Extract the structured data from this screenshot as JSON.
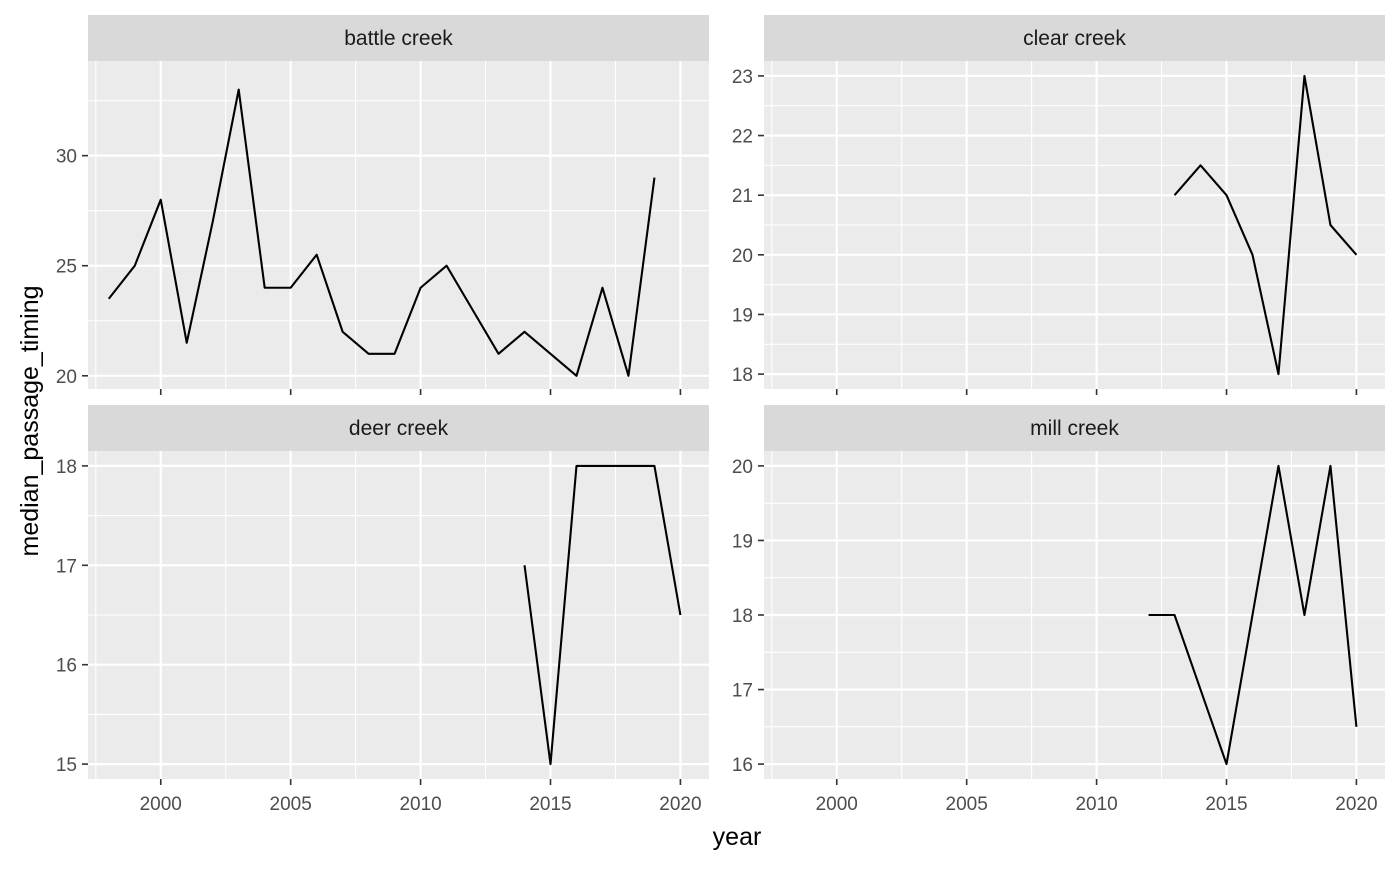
{
  "chart_data": {
    "type": "line",
    "layout": "facet_wrap",
    "xlabel": "year",
    "ylabel": "median_passage_timing",
    "x_ticks": [
      2000,
      2005,
      2010,
      2015,
      2020
    ],
    "xlim": [
      1997.2,
      2021.1
    ],
    "grid": true,
    "line_color": "#000000",
    "panel_bg": "#ebebeb",
    "strip_bg": "#d9d9d9",
    "panels": [
      {
        "title": "battle creek",
        "ylim": [
          19.4,
          34.3
        ],
        "y_ticks": [
          20,
          25,
          30
        ],
        "x": [
          1998,
          1999,
          2000,
          2001,
          2002,
          2003,
          2004,
          2005,
          2006,
          2007,
          2008,
          2009,
          2010,
          2011,
          2012,
          2013,
          2014,
          2015,
          2016,
          2017,
          2018,
          2019
        ],
        "y": [
          23.5,
          25,
          28,
          21.5,
          27,
          33,
          24,
          24,
          25.5,
          22,
          21,
          21,
          24,
          25,
          23,
          21,
          22,
          21,
          20,
          24,
          20,
          29
        ]
      },
      {
        "title": "clear creek",
        "ylim": [
          17.75,
          23.25
        ],
        "y_ticks": [
          18,
          19,
          20,
          21,
          22,
          23
        ],
        "x": [
          2013,
          2014,
          2015,
          2016,
          2017,
          2018,
          2019,
          2020
        ],
        "y": [
          21,
          21.5,
          21,
          20,
          18,
          23,
          20.5,
          20
        ]
      },
      {
        "title": "deer creek",
        "ylim": [
          14.85,
          18.15
        ],
        "y_ticks": [
          15,
          16,
          17,
          18
        ],
        "x": [
          2014,
          2015,
          2016,
          2017,
          2018,
          2019,
          2020
        ],
        "y": [
          17,
          15,
          18,
          18,
          18,
          18,
          16.5
        ]
      },
      {
        "title": "mill creek",
        "ylim": [
          15.8,
          20.2
        ],
        "y_ticks": [
          16,
          17,
          18,
          19,
          20
        ],
        "x": [
          2012,
          2013,
          2014,
          2015,
          2016,
          2017,
          2018,
          2019,
          2020
        ],
        "y": [
          18,
          18,
          17,
          16,
          18,
          20,
          18,
          20,
          16.5
        ]
      }
    ]
  }
}
